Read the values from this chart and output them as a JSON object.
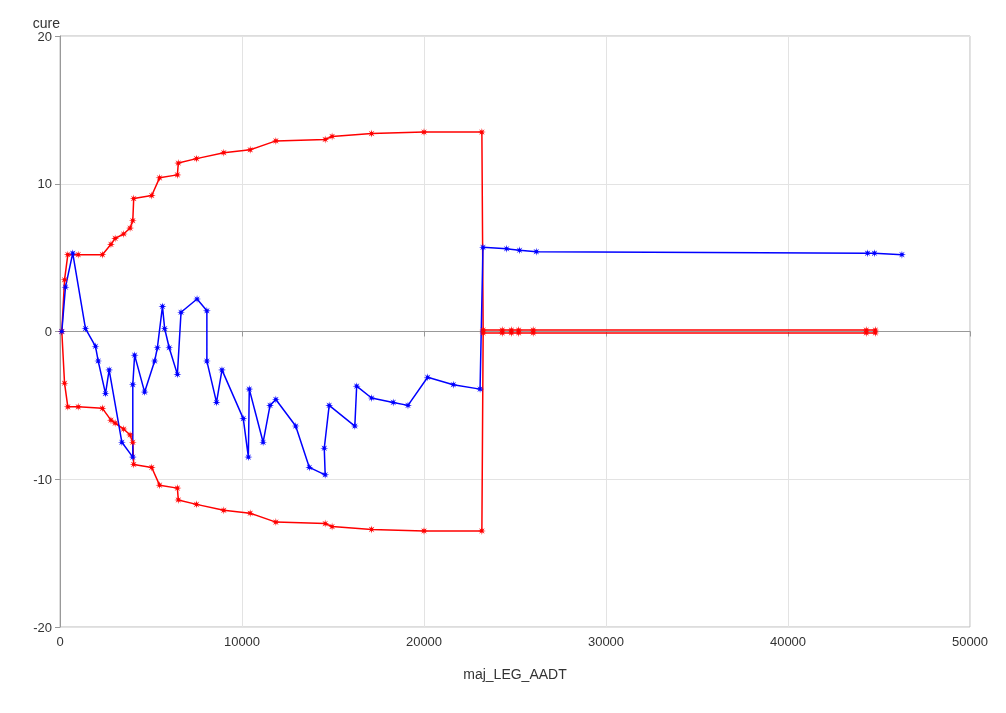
{
  "chart_data": {
    "type": "line",
    "xlabel": "maj_LEG_AADT",
    "ylabel": "cure",
    "xlim": [
      0,
      50000
    ],
    "xticks": [
      0,
      10000,
      20000,
      30000,
      40000,
      50000
    ],
    "ylim": [
      -20,
      20
    ],
    "yticks": [
      -20,
      -10,
      0,
      10,
      20
    ],
    "grid": true,
    "marker": "star",
    "line_style": "solid",
    "series": [
      {
        "color": "#ff0000",
        "x": [
          44800,
          44300,
          26000,
          25200,
          24800,
          24300,
          23250,
          23180,
          20000,
          17120,
          14950,
          14570,
          11860,
          10450,
          9000,
          7500,
          6500,
          6450,
          5470,
          5040,
          4050,
          4000,
          3850,
          3500,
          3030,
          2800,
          2330,
          1000,
          430,
          250,
          100,
          250,
          430,
          1000,
          2330,
          2800,
          3030,
          3500,
          3850,
          4000,
          4050,
          5040,
          5470,
          6450,
          6500,
          7500,
          9000,
          10450,
          11860,
          14570,
          14950,
          17120,
          20000,
          23180,
          23250,
          24300,
          24800,
          25200,
          26000,
          44300,
          44800
        ],
        "values": [
          -0.1,
          -0.1,
          -0.1,
          -0.1,
          -0.1,
          -0.1,
          -0.1,
          -13.5,
          -13.5,
          -13.4,
          -13.2,
          -13.0,
          -12.9,
          -12.3,
          -12.1,
          -11.7,
          -11.4,
          -10.6,
          -10.4,
          -9.2,
          -9.0,
          -7.5,
          -7,
          -6.6,
          -6.2,
          -6.0,
          -5.2,
          -5.1,
          -5.1,
          -3.5,
          0,
          3.5,
          5.2,
          5.2,
          5.2,
          5.9,
          6.3,
          6.6,
          7,
          7.5,
          9.0,
          9.2,
          10.4,
          10.6,
          11.4,
          11.7,
          12.1,
          12.3,
          12.9,
          13.0,
          13.2,
          13.4,
          13.5,
          13.5,
          0.1,
          0.1,
          0.1,
          0.1,
          0.1,
          0.1,
          0.1
        ]
      },
      {
        "color": "#0000ff",
        "x": [
          100,
          300,
          700,
          1400,
          1950,
          2100,
          2500,
          2700,
          3400,
          4000,
          4000,
          4100,
          4650,
          5200,
          5350,
          5630,
          5750,
          6000,
          6450,
          6650,
          7530,
          8070,
          8070,
          8600,
          8900,
          10070,
          10350,
          10400,
          11160,
          11540,
          11860,
          12950,
          13700,
          14570,
          14520,
          14790,
          16200,
          16300,
          17120,
          18310,
          19120,
          20200,
          21610,
          23080,
          23240,
          24540,
          25250,
          26170,
          44370,
          44750,
          46260
        ],
        "values": [
          0,
          3.0,
          5.3,
          0.2,
          -1.0,
          -2.0,
          -4.2,
          -2.6,
          -7.5,
          -8.5,
          -3.6,
          -1.6,
          -4.1,
          -2.0,
          -1.1,
          1.7,
          0.2,
          -1.1,
          -2.9,
          1.3,
          2.2,
          1.4,
          -2.0,
          -4.8,
          -2.6,
          -5.9,
          -8.5,
          -3.9,
          -7.5,
          -5.0,
          -4.6,
          -6.4,
          -9.2,
          -9.7,
          -7.9,
          -5.0,
          -6.4,
          -3.7,
          -4.5,
          -4.8,
          -5.0,
          -3.1,
          -3.6,
          -3.9,
          5.7,
          5.6,
          5.5,
          5.4,
          5.3,
          5.3,
          5.2
        ]
      }
    ]
  }
}
